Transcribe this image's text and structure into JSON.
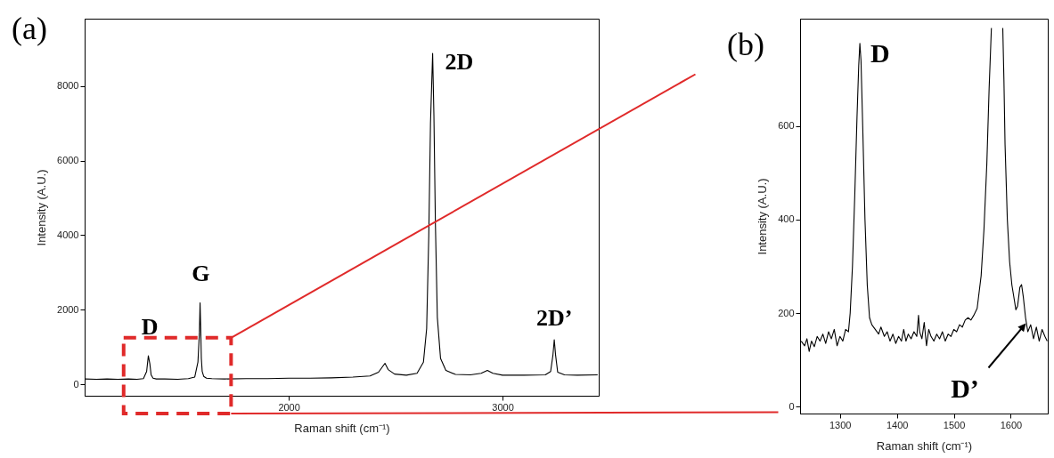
{
  "chart_data": [
    {
      "type": "line",
      "title": "(a)",
      "xlabel": "Raman shift (cm⁻¹)",
      "ylabel": "Intensity (A.U.)",
      "color": "#000000",
      "xlim": [
        1045,
        3450
      ],
      "ylim": [
        -300,
        9800
      ],
      "xticks": [
        2000,
        3000
      ],
      "yticks": [
        0,
        2000,
        4000,
        6000,
        8000
      ],
      "x": [
        1048,
        1100,
        1150,
        1200,
        1250,
        1290,
        1320,
        1335,
        1343,
        1350,
        1356,
        1365,
        1380,
        1420,
        1480,
        1530,
        1560,
        1575,
        1582,
        1585,
        1588,
        1591,
        1595,
        1602,
        1615,
        1640,
        1700,
        1800,
        1900,
        2000,
        2100,
        2200,
        2300,
        2380,
        2420,
        2450,
        2465,
        2495,
        2550,
        2600,
        2630,
        2645,
        2655,
        2663,
        2673,
        2679,
        2686,
        2695,
        2710,
        2735,
        2780,
        2850,
        2900,
        2929,
        2955,
        3000,
        3100,
        3200,
        3225,
        3236,
        3242,
        3248,
        3258,
        3290,
        3350,
        3445
      ],
      "values": [
        150,
        140,
        150,
        140,
        150,
        140,
        160,
        350,
        770,
        560,
        260,
        170,
        150,
        150,
        140,
        160,
        200,
        600,
        1400,
        2190,
        1500,
        700,
        350,
        220,
        170,
        160,
        150,
        160,
        160,
        170,
        170,
        180,
        200,
        230,
        330,
        570,
        400,
        280,
        250,
        300,
        600,
        1500,
        4000,
        7000,
        8870,
        7200,
        4300,
        1800,
        700,
        380,
        270,
        260,
        300,
        380,
        300,
        250,
        250,
        260,
        350,
        800,
        1200,
        800,
        330,
        260,
        250,
        260
      ],
      "annotations": [
        {
          "text": "D",
          "x": 1350,
          "y": 770
        },
        {
          "text": "G",
          "x": 1588,
          "y": 2190
        },
        {
          "text": "2D",
          "x": 2673,
          "y": 8870
        },
        {
          "text": "2D’",
          "x": 3242,
          "y": 1200
        }
      ]
    },
    {
      "type": "line",
      "title": "(b)",
      "xlabel": "Raman shift (cm⁻¹)",
      "ylabel": "Intensity (A.U.)",
      "color": "#000000",
      "xlim": [
        1230,
        1665
      ],
      "ylim": [
        -15,
        830
      ],
      "xticks": [
        1300,
        1400,
        1500,
        1600
      ],
      "yticks": [
        0,
        200,
        400,
        600
      ],
      "x": [
        1232,
        1238,
        1242,
        1246,
        1250,
        1255,
        1260,
        1265,
        1270,
        1275,
        1280,
        1285,
        1290,
        1295,
        1300,
        1305,
        1310,
        1315,
        1318,
        1322,
        1326,
        1330,
        1333,
        1335,
        1337,
        1340,
        1344,
        1348,
        1352,
        1356,
        1362,
        1368,
        1372,
        1378,
        1383,
        1388,
        1393,
        1398,
        1403,
        1408,
        1412,
        1416,
        1420,
        1425,
        1430,
        1435,
        1438,
        1440,
        1444,
        1448,
        1452,
        1456,
        1460,
        1465,
        1470,
        1475,
        1480,
        1485,
        1490,
        1495,
        1500,
        1505,
        1510,
        1515,
        1520,
        1525,
        1530,
        1535,
        1541,
        1548,
        1553,
        1558,
        1562,
        1566,
        1576,
        1586,
        1588,
        1590,
        1594,
        1598,
        1602,
        1606,
        1609,
        1612,
        1616,
        1619,
        1622,
        1626,
        1630,
        1635,
        1640,
        1645,
        1650,
        1655,
        1660,
        1664
      ],
      "values": [
        140,
        130,
        145,
        118,
        140,
        128,
        150,
        140,
        155,
        135,
        160,
        145,
        165,
        130,
        150,
        140,
        165,
        160,
        200,
        300,
        450,
        620,
        730,
        777,
        740,
        600,
        400,
        260,
        190,
        175,
        165,
        155,
        170,
        150,
        160,
        140,
        155,
        135,
        150,
        140,
        165,
        140,
        155,
        145,
        160,
        150,
        195,
        160,
        145,
        180,
        130,
        165,
        150,
        140,
        155,
        145,
        160,
        140,
        155,
        150,
        165,
        160,
        175,
        170,
        185,
        190,
        185,
        195,
        210,
        280,
        380,
        520,
        680,
        810,
        null,
        810,
        700,
        560,
        400,
        310,
        260,
        230,
        207,
        215,
        255,
        261,
        235,
        190,
        160,
        175,
        145,
        170,
        140,
        165,
        150,
        140
      ],
      "annotations": [
        {
          "text": "D",
          "x": 1335,
          "y": 777
        },
        "D’"
      ]
    }
  ]
}
